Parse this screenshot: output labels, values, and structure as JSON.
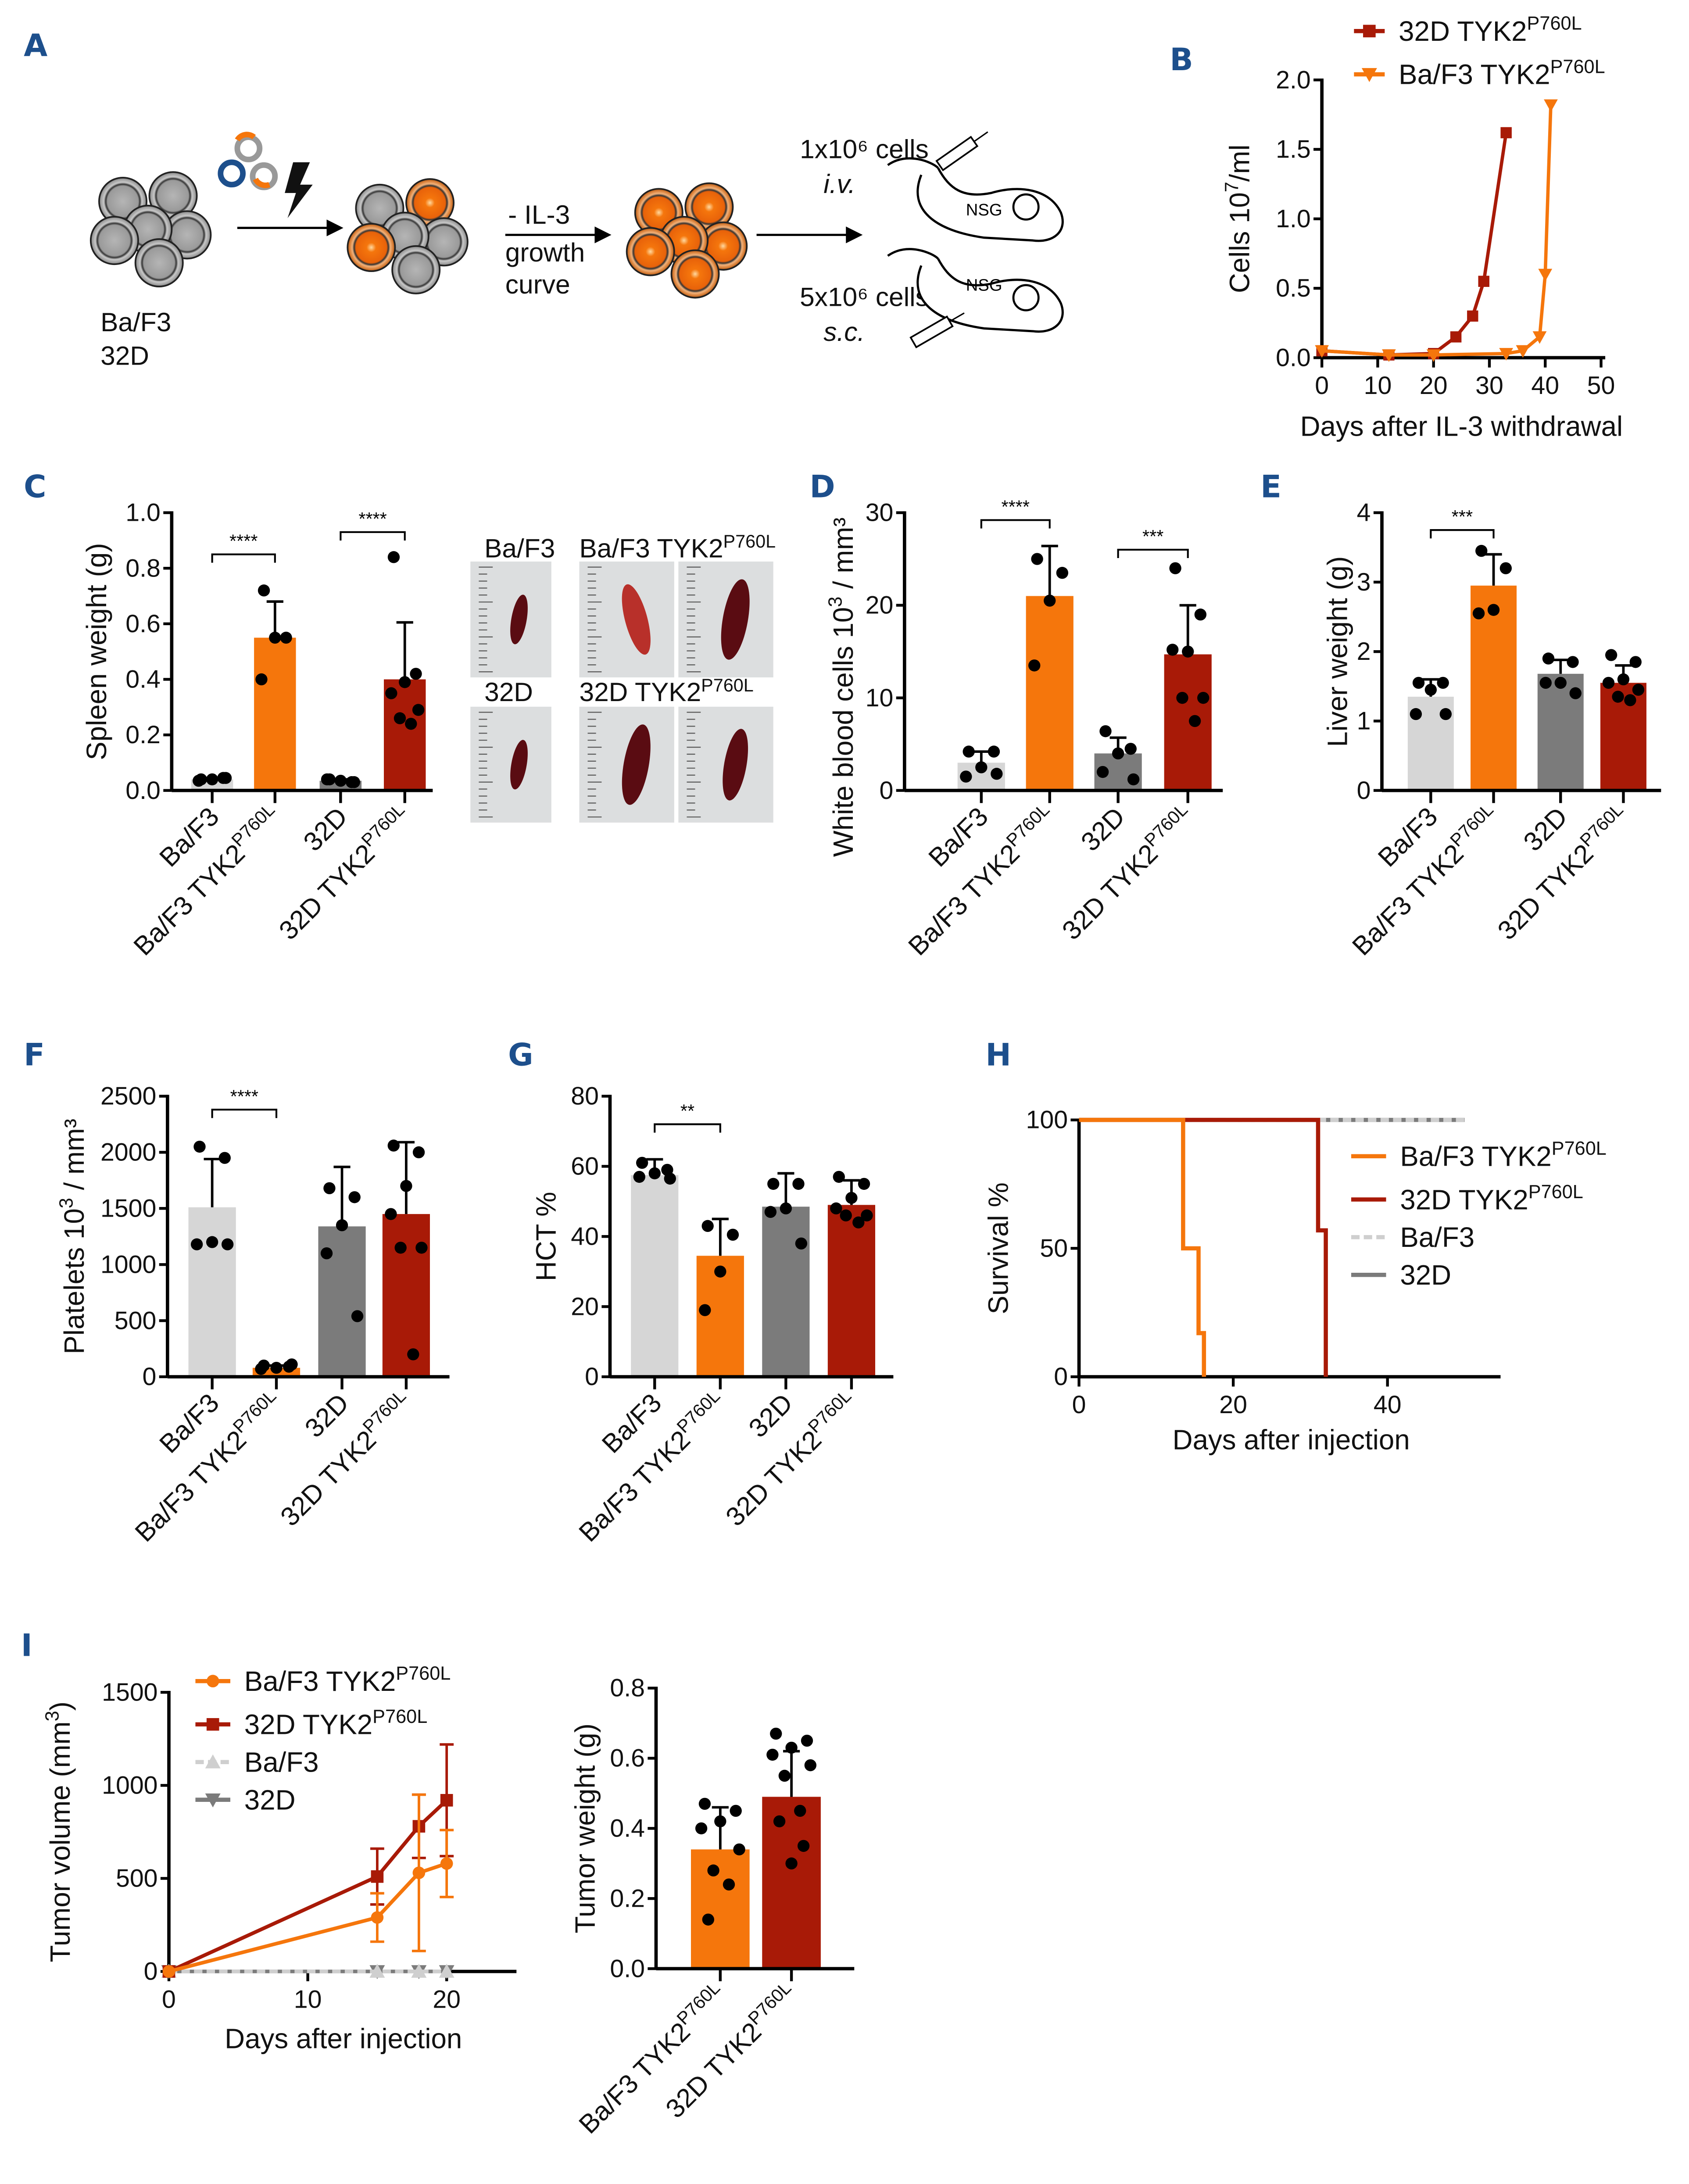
{
  "panel_labels": {
    "A": "A",
    "B": "B",
    "C": "C",
    "D": "D",
    "E": "E",
    "F": "F",
    "G": "G",
    "H": "H",
    "I": "I"
  },
  "panel_a": {
    "cell_line_1": "Ba/F3",
    "cell_line_2": "32D",
    "il3_step": "- IL-3",
    "growth": "growth",
    "curve": "curve",
    "iv_dose": "1x10⁶ cells",
    "iv_route": "i.v.",
    "sc_dose": "5x10⁶ cells",
    "sc_route": "s.c.",
    "mouse_label": "NSG"
  },
  "photos": {
    "top_left": "Ba/F3",
    "top_right": {
      "label": "Ba/F3 TYK2",
      "sup": "P760L"
    },
    "bottom_left": "32D",
    "bottom_right": {
      "label": "32D TYK2",
      "sup": "P760L"
    }
  },
  "colors": {
    "bafc": "#d6d6d6",
    "baf_tyk2": "#f5760c",
    "d32": "#7b7b7b",
    "d32_tyk2": "#a81a07"
  },
  "chart_data": [
    {
      "id": "B",
      "type": "line",
      "xlabel": "Days after IL-3 withdrawal",
      "ylabel": {
        "label": "Cells 10",
        "sup": "7",
        "after": "/ml"
      },
      "xlim": [
        0,
        50
      ],
      "xticks": [
        0,
        10,
        20,
        30,
        40,
        50
      ],
      "ylim": [
        0,
        2.0
      ],
      "yticks": [
        "0.0",
        "0.5",
        "1.0",
        "1.5",
        "2.0"
      ],
      "legend": "top-right",
      "series": [
        {
          "name": "32D TYK2",
          "sup": "P760L",
          "color": "#a81a07",
          "marker": "square",
          "x": [
            0,
            12,
            20,
            24,
            27,
            29,
            33
          ],
          "y": [
            0.05,
            0.02,
            0.03,
            0.15,
            0.3,
            0.55,
            1.62
          ]
        },
        {
          "name": "Ba/F3 TYK2",
          "sup": "P760L",
          "color": "#f5760c",
          "marker": "triangle-down",
          "x": [
            0,
            12,
            20,
            33,
            36,
            39,
            40,
            41
          ],
          "y": [
            0.05,
            0.02,
            0.02,
            0.03,
            0.05,
            0.15,
            0.6,
            1.82
          ]
        }
      ]
    },
    {
      "id": "C",
      "type": "bar",
      "ylabel": {
        "label": "Spleen weight (g)"
      },
      "ylim": [
        0,
        1.0
      ],
      "yticks": [
        "0.0",
        "0.2",
        "0.4",
        "0.6",
        "0.8",
        "1.0"
      ],
      "categories": [
        {
          "label": "Ba/F3"
        },
        {
          "label": "Ba/F3 TYK2",
          "sup": "P760L"
        },
        {
          "label": "32D"
        },
        {
          "label": "32D TYK2",
          "sup": "P760L"
        }
      ],
      "values": [
        0.04,
        0.55,
        0.035,
        0.4
      ],
      "errors": [
        0.005,
        0.13,
        0.005,
        0.205
      ],
      "points": [
        [
          0.04,
          0.045,
          0.04,
          0.035,
          0.045
        ],
        [
          0.72,
          0.55,
          0.55,
          0.4
        ],
        [
          0.04,
          0.03,
          0.035,
          0.04,
          0.03
        ],
        [
          0.84,
          0.42,
          0.39,
          0.35,
          0.29,
          0.26,
          0.24
        ]
      ],
      "significance": [
        {
          "from": 0,
          "to": 1,
          "level": 0.85,
          "label": "****"
        },
        {
          "from": 2,
          "to": 3,
          "level": 0.93,
          "label": "****"
        }
      ]
    },
    {
      "id": "D",
      "type": "bar",
      "ylabel": {
        "label": "White blood cells 10",
        "sup": "3",
        "after": " / mm³"
      },
      "ylim": [
        0,
        30
      ],
      "yticks": [
        "0",
        "10",
        "20",
        "30"
      ],
      "categories": [
        {
          "label": "Ba/F3"
        },
        {
          "label": "Ba/F3 TYK2",
          "sup": "P760L"
        },
        {
          "label": "32D"
        },
        {
          "label": "32D TYK2",
          "sup": "P760L"
        }
      ],
      "values": [
        3.0,
        21.0,
        4.0,
        14.7
      ],
      "errors": [
        1.2,
        5.4,
        1.7,
        5.3
      ],
      "points": [
        [
          4.2,
          4.2,
          2.5,
          1.5,
          1.8
        ],
        [
          25.0,
          23.5,
          20.5,
          13.5
        ],
        [
          6.4,
          4.5,
          4.0,
          2.0,
          1.2
        ],
        [
          24.0,
          19.0,
          15.0,
          15.2,
          10.0,
          10.0,
          7.5
        ]
      ],
      "significance": [
        {
          "from": 0,
          "to": 1,
          "level": 29.2,
          "label": "****"
        },
        {
          "from": 2,
          "to": 3,
          "level": 26.0,
          "label": "***"
        }
      ]
    },
    {
      "id": "E",
      "type": "bar",
      "ylabel": {
        "label": "Liver weight (g)"
      },
      "ylim": [
        0,
        4
      ],
      "yticks": [
        "0",
        "1",
        "2",
        "3",
        "4"
      ],
      "categories": [
        {
          "label": "Ba/F3"
        },
        {
          "label": "Ba/F3 TYK2",
          "sup": "P760L"
        },
        {
          "label": "32D"
        },
        {
          "label": "32D TYK2",
          "sup": "P760L"
        }
      ],
      "values": [
        1.35,
        2.95,
        1.68,
        1.55
      ],
      "errors": [
        0.25,
        0.45,
        0.2,
        0.25
      ],
      "points": [
        [
          1.55,
          1.55,
          1.45,
          1.1,
          1.1
        ],
        [
          3.45,
          3.2,
          2.6,
          2.55
        ],
        [
          1.9,
          1.85,
          1.55,
          1.55,
          1.4
        ],
        [
          1.95,
          1.85,
          1.6,
          1.55,
          1.45,
          1.35,
          1.3
        ]
      ],
      "significance": [
        {
          "from": 0,
          "to": 1,
          "level": 3.75,
          "label": "***"
        }
      ]
    },
    {
      "id": "F",
      "type": "bar",
      "ylabel": {
        "label": "Platelets 10",
        "sup": "3",
        "after": " / mm³"
      },
      "ylim": [
        0,
        2500
      ],
      "yticks": [
        "0",
        "500",
        "1000",
        "1500",
        "2000",
        "2500"
      ],
      "categories": [
        {
          "label": "Ba/F3"
        },
        {
          "label": "Ba/F3 TYK2",
          "sup": "P760L"
        },
        {
          "label": "32D"
        },
        {
          "label": "32D TYK2",
          "sup": "P760L"
        }
      ],
      "values": [
        1510,
        80,
        1340,
        1450
      ],
      "errors": [
        430,
        20,
        530,
        640
      ],
      "points": [
        [
          2050,
          1950,
          1200,
          1180,
          1180
        ],
        [
          100,
          90,
          80,
          70,
          110
        ],
        [
          1680,
          1600,
          1350,
          1100,
          540
        ],
        [
          2060,
          2000,
          1700,
          1450,
          1150,
          1150,
          200
        ]
      ],
      "significance": [
        {
          "from": 0,
          "to": 1,
          "level": 2380,
          "label": "****"
        }
      ]
    },
    {
      "id": "G",
      "type": "bar",
      "ylabel": {
        "label": "HCT %"
      },
      "ylim": [
        0,
        80
      ],
      "yticks": [
        "0",
        "20",
        "40",
        "60",
        "80"
      ],
      "categories": [
        {
          "label": "Ba/F3"
        },
        {
          "label": "Ba/F3 TYK2",
          "sup": "P760L"
        },
        {
          "label": "32D"
        },
        {
          "label": "32D TYK2",
          "sup": "P760L"
        }
      ],
      "values": [
        57.5,
        34.5,
        48.5,
        49.0
      ],
      "errors": [
        4.5,
        10.5,
        9.5,
        7.0
      ],
      "points": [
        [
          61,
          59,
          58,
          57,
          56.5
        ],
        [
          43,
          40.5,
          30,
          19
        ],
        [
          55,
          55,
          48,
          47,
          38
        ],
        [
          57,
          55,
          51,
          48,
          46,
          46,
          44
        ]
      ],
      "significance": [
        {
          "from": 0,
          "to": 1,
          "level": 72,
          "label": "**"
        }
      ]
    },
    {
      "id": "H",
      "type": "line",
      "subtype": "survival",
      "xlabel": "Days after injection",
      "ylabel": {
        "label": "Survival %"
      },
      "xlim": [
        0,
        55
      ],
      "xticks": [
        0,
        20,
        40
      ],
      "ylim": [
        0,
        100
      ],
      "yticks": [
        0,
        50,
        100
      ],
      "legend": "right",
      "series": [
        {
          "name": "Ba/F3 TYK2",
          "sup": "P760L",
          "color": "#f5760c",
          "x": [
            0,
            13.5,
            13.5,
            15.5,
            15.5,
            16.2,
            16.2
          ],
          "y": [
            100,
            100,
            50,
            50,
            17,
            17,
            0
          ]
        },
        {
          "name": "32D TYK2",
          "sup": "P760L",
          "color": "#a81a07",
          "x": [
            0,
            31,
            31,
            32,
            32
          ],
          "y": [
            100,
            100,
            57,
            57,
            0
          ]
        },
        {
          "name": "Ba/F3",
          "color": "#d6d6d6",
          "x": [
            0,
            50
          ],
          "y": [
            100,
            100
          ]
        },
        {
          "name": "32D",
          "color": "#7b7b7b",
          "x": [
            0,
            50
          ],
          "y": [
            100,
            100
          ]
        }
      ]
    },
    {
      "id": "I1",
      "type": "line",
      "xlabel": "Days after injection",
      "ylabel": {
        "label": "Tumor volume (mm",
        "sup": "3",
        "after": ")"
      },
      "xlim": [
        0,
        25
      ],
      "xticks": [
        0,
        10,
        20
      ],
      "ylim": [
        0,
        1500
      ],
      "yticks": [
        0,
        500,
        1000,
        1500
      ],
      "legend": "top-left",
      "series": [
        {
          "name": "Ba/F3 TYK2",
          "sup": "P760L",
          "color": "#f5760c",
          "marker": "circle",
          "x": [
            0,
            15,
            18,
            20
          ],
          "y": [
            0,
            290,
            530,
            580
          ],
          "err": [
            0,
            130,
            420,
            180
          ]
        },
        {
          "name": "32D TYK2",
          "sup": "P760L",
          "color": "#a81a07",
          "marker": "square",
          "x": [
            0,
            15,
            18,
            20
          ],
          "y": [
            0,
            510,
            780,
            920
          ],
          "err": [
            0,
            150,
            170,
            300
          ]
        },
        {
          "name": "Ba/F3",
          "color": "#d6d6d6",
          "marker": "triangle-up",
          "x": [
            0,
            15,
            18,
            20
          ],
          "y": [
            0,
            0,
            0,
            0
          ],
          "err": [
            0,
            0,
            0,
            0
          ]
        },
        {
          "name": "32D",
          "color": "#7b7b7b",
          "marker": "triangle-down",
          "x": [
            0,
            15,
            18,
            20
          ],
          "y": [
            0,
            0,
            0,
            0
          ],
          "err": [
            0,
            0,
            0,
            0
          ]
        }
      ]
    },
    {
      "id": "I2",
      "type": "bar",
      "ylabel": {
        "label": "Tumor weight (g)"
      },
      "ylim": [
        0,
        0.8
      ],
      "yticks": [
        "0.0",
        "0.2",
        "0.4",
        "0.6",
        "0.8"
      ],
      "categories": [
        {
          "label": "Ba/F3 TYK2",
          "sup": "P760L"
        },
        {
          "label": "32D TYK2",
          "sup": "P760L"
        }
      ],
      "values": [
        0.34,
        0.49
      ],
      "errors": [
        0.12,
        0.13
      ],
      "points": [
        [
          0.47,
          0.45,
          0.42,
          0.4,
          0.34,
          0.28,
          0.24,
          0.14
        ],
        [
          0.67,
          0.65,
          0.63,
          0.61,
          0.58,
          0.55,
          0.45,
          0.42,
          0.35,
          0.3
        ]
      ],
      "significance": []
    }
  ]
}
